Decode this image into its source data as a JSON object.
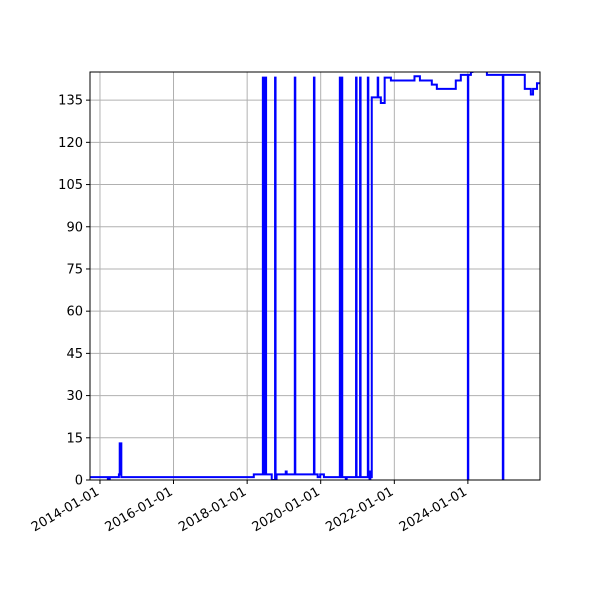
{
  "chart_data": {
    "type": "line",
    "title": "",
    "xlabel": "",
    "ylabel": "",
    "xlim": [
      "2013-09-24",
      "2025-12-17"
    ],
    "ylim": [
      0,
      145
    ],
    "grid": true,
    "line_color": "#0000ff",
    "drawstyle": "steps-post",
    "x_ticks": [
      "2014-01-01",
      "2016-01-01",
      "2018-01-01",
      "2020-01-01",
      "2022-01-01",
      "2024-01-01"
    ],
    "y_ticks": [
      0,
      15,
      30,
      45,
      60,
      75,
      90,
      105,
      120,
      135
    ],
    "series": [
      {
        "points": [
          [
            "2013-09-24",
            1
          ],
          [
            "2014-03-20",
            0
          ],
          [
            "2014-04-08",
            1
          ],
          [
            "2014-07-08",
            2
          ],
          [
            "2014-07-16",
            13
          ],
          [
            "2014-08-01",
            1
          ],
          [
            "2018-03-08",
            2
          ],
          [
            "2018-06-06",
            143
          ],
          [
            "2018-06-12",
            2
          ],
          [
            "2018-06-18",
            143
          ],
          [
            "2018-06-24",
            2
          ],
          [
            "2018-07-01",
            143
          ],
          [
            "2018-07-08",
            2
          ],
          [
            "2018-09-02",
            0
          ],
          [
            "2018-10-05",
            143
          ],
          [
            "2018-10-10",
            0
          ],
          [
            "2018-10-20",
            2
          ],
          [
            "2019-01-19",
            3
          ],
          [
            "2019-01-28",
            2
          ],
          [
            "2019-04-19",
            143
          ],
          [
            "2019-04-24",
            2
          ],
          [
            "2019-10-26",
            143
          ],
          [
            "2019-10-31",
            2
          ],
          [
            "2019-12-02",
            1
          ],
          [
            "2019-12-27",
            2
          ],
          [
            "2020-02-02",
            1
          ],
          [
            "2020-07-09",
            143
          ],
          [
            "2020-07-20",
            1
          ],
          [
            "2020-07-26",
            143
          ],
          [
            "2020-08-02",
            1
          ],
          [
            "2020-09-06",
            0
          ],
          [
            "2020-09-15",
            1
          ],
          [
            "2020-12-17",
            143
          ],
          [
            "2020-12-22",
            1
          ],
          [
            "2021-01-26",
            143
          ],
          [
            "2021-01-31",
            1
          ],
          [
            "2021-04-13",
            143
          ],
          [
            "2021-04-18",
            1
          ],
          [
            "2021-04-30",
            0
          ],
          [
            "2021-05-08",
            3
          ],
          [
            "2021-05-14",
            1
          ],
          [
            "2021-05-22",
            136
          ],
          [
            "2021-07-20",
            143
          ],
          [
            "2021-07-25",
            136
          ],
          [
            "2021-08-20",
            134
          ],
          [
            "2021-09-27",
            143
          ],
          [
            "2021-11-28",
            142
          ],
          [
            "2022-07-20",
            143.5
          ],
          [
            "2022-09-12",
            142
          ],
          [
            "2023-01-08",
            140.5
          ],
          [
            "2023-02-27",
            139
          ],
          [
            "2023-09-03",
            142
          ],
          [
            "2023-10-23",
            144
          ],
          [
            "2024-01-01",
            0
          ],
          [
            "2024-01-05",
            144
          ],
          [
            "2024-01-31",
            145
          ],
          [
            "2024-02-15",
            147
          ],
          [
            "2024-07-08",
            144
          ],
          [
            "2024-12-13",
            0
          ],
          [
            "2024-12-18",
            144
          ],
          [
            "2025-07-19",
            139
          ],
          [
            "2025-09-17",
            137
          ],
          [
            "2025-10-09",
            139
          ],
          [
            "2025-11-17",
            141
          ],
          [
            "2025-12-17",
            141
          ]
        ]
      }
    ]
  }
}
